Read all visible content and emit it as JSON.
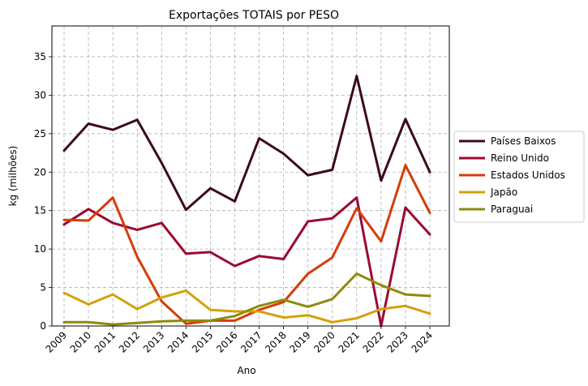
{
  "chart_data": {
    "type": "line",
    "title": "Exportações TOTAIS por PESO",
    "xlabel": "Ano",
    "ylabel": "kg (milhões)",
    "x": [
      "2009",
      "2010",
      "2011",
      "2012",
      "2013",
      "2014",
      "2015",
      "2016",
      "2017",
      "2018",
      "2019",
      "2020",
      "2021",
      "2022",
      "2023",
      "2024"
    ],
    "ylim": [
      0,
      39
    ],
    "yticks": [
      0,
      5,
      10,
      15,
      20,
      25,
      30,
      35
    ],
    "grid": true,
    "legend_position": "center-right, outside plot",
    "series": [
      {
        "name": "Países Baixos",
        "color": "#3b0a1f",
        "values": [
          22.8,
          26.3,
          25.5,
          26.8,
          21.2,
          15.1,
          17.9,
          16.2,
          24.4,
          22.4,
          19.6,
          20.3,
          32.5,
          18.9,
          26.9,
          20.0
        ]
      },
      {
        "name": "Reino Unido",
        "color": "#9b0a30",
        "values": [
          13.2,
          15.2,
          13.4,
          12.5,
          13.4,
          9.4,
          9.6,
          7.8,
          9.1,
          8.7,
          13.6,
          14.0,
          16.7,
          0.0,
          15.4,
          11.9
        ]
      },
      {
        "name": "Estados Unidos",
        "color": "#d43d0a",
        "values": [
          13.8,
          13.7,
          16.7,
          9.0,
          3.2,
          0.3,
          0.7,
          0.7,
          2.1,
          3.1,
          6.8,
          8.9,
          15.3,
          11.0,
          20.9,
          14.7
        ]
      },
      {
        "name": "Japão",
        "color": "#d4a00a",
        "values": [
          4.3,
          2.8,
          4.1,
          2.2,
          3.7,
          4.6,
          2.1,
          1.9,
          1.9,
          1.1,
          1.4,
          0.5,
          1.0,
          2.2,
          2.6,
          1.6
        ]
      },
      {
        "name": "Paraguai",
        "color": "#8f8a0a",
        "values": [
          0.5,
          0.5,
          0.2,
          0.4,
          0.6,
          0.7,
          0.7,
          1.3,
          2.6,
          3.4,
          2.5,
          3.5,
          6.8,
          5.3,
          4.1,
          3.9
        ]
      }
    ]
  }
}
